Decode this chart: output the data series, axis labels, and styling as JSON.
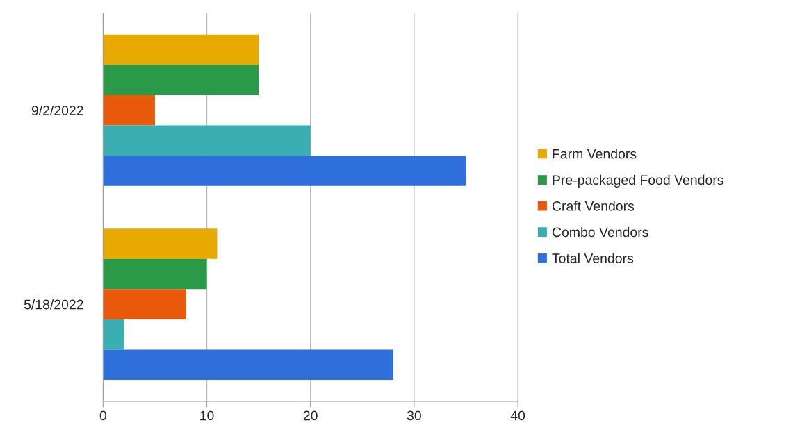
{
  "chart_data": {
    "type": "bar",
    "orientation": "horizontal",
    "categories": [
      "9/2/2022",
      "5/18/2022"
    ],
    "series": [
      {
        "name": "Farm Vendors",
        "color": "#e8a900",
        "values": [
          15,
          11
        ]
      },
      {
        "name": "Pre-packaged Food Vendors",
        "color": "#2a9a48",
        "values": [
          15,
          10
        ]
      },
      {
        "name": "Craft Vendors",
        "color": "#e8590c",
        "values": [
          5,
          8
        ]
      },
      {
        "name": "Combo Vendors",
        "color": "#3aaeb0",
        "values": [
          20,
          2
        ]
      },
      {
        "name": "Total Vendors",
        "color": "#2f6fdc",
        "values": [
          35,
          28
        ]
      }
    ],
    "xlim": [
      0,
      40
    ],
    "xticks": [
      0,
      10,
      20,
      30,
      40
    ],
    "grid": "x",
    "legend": "right"
  }
}
